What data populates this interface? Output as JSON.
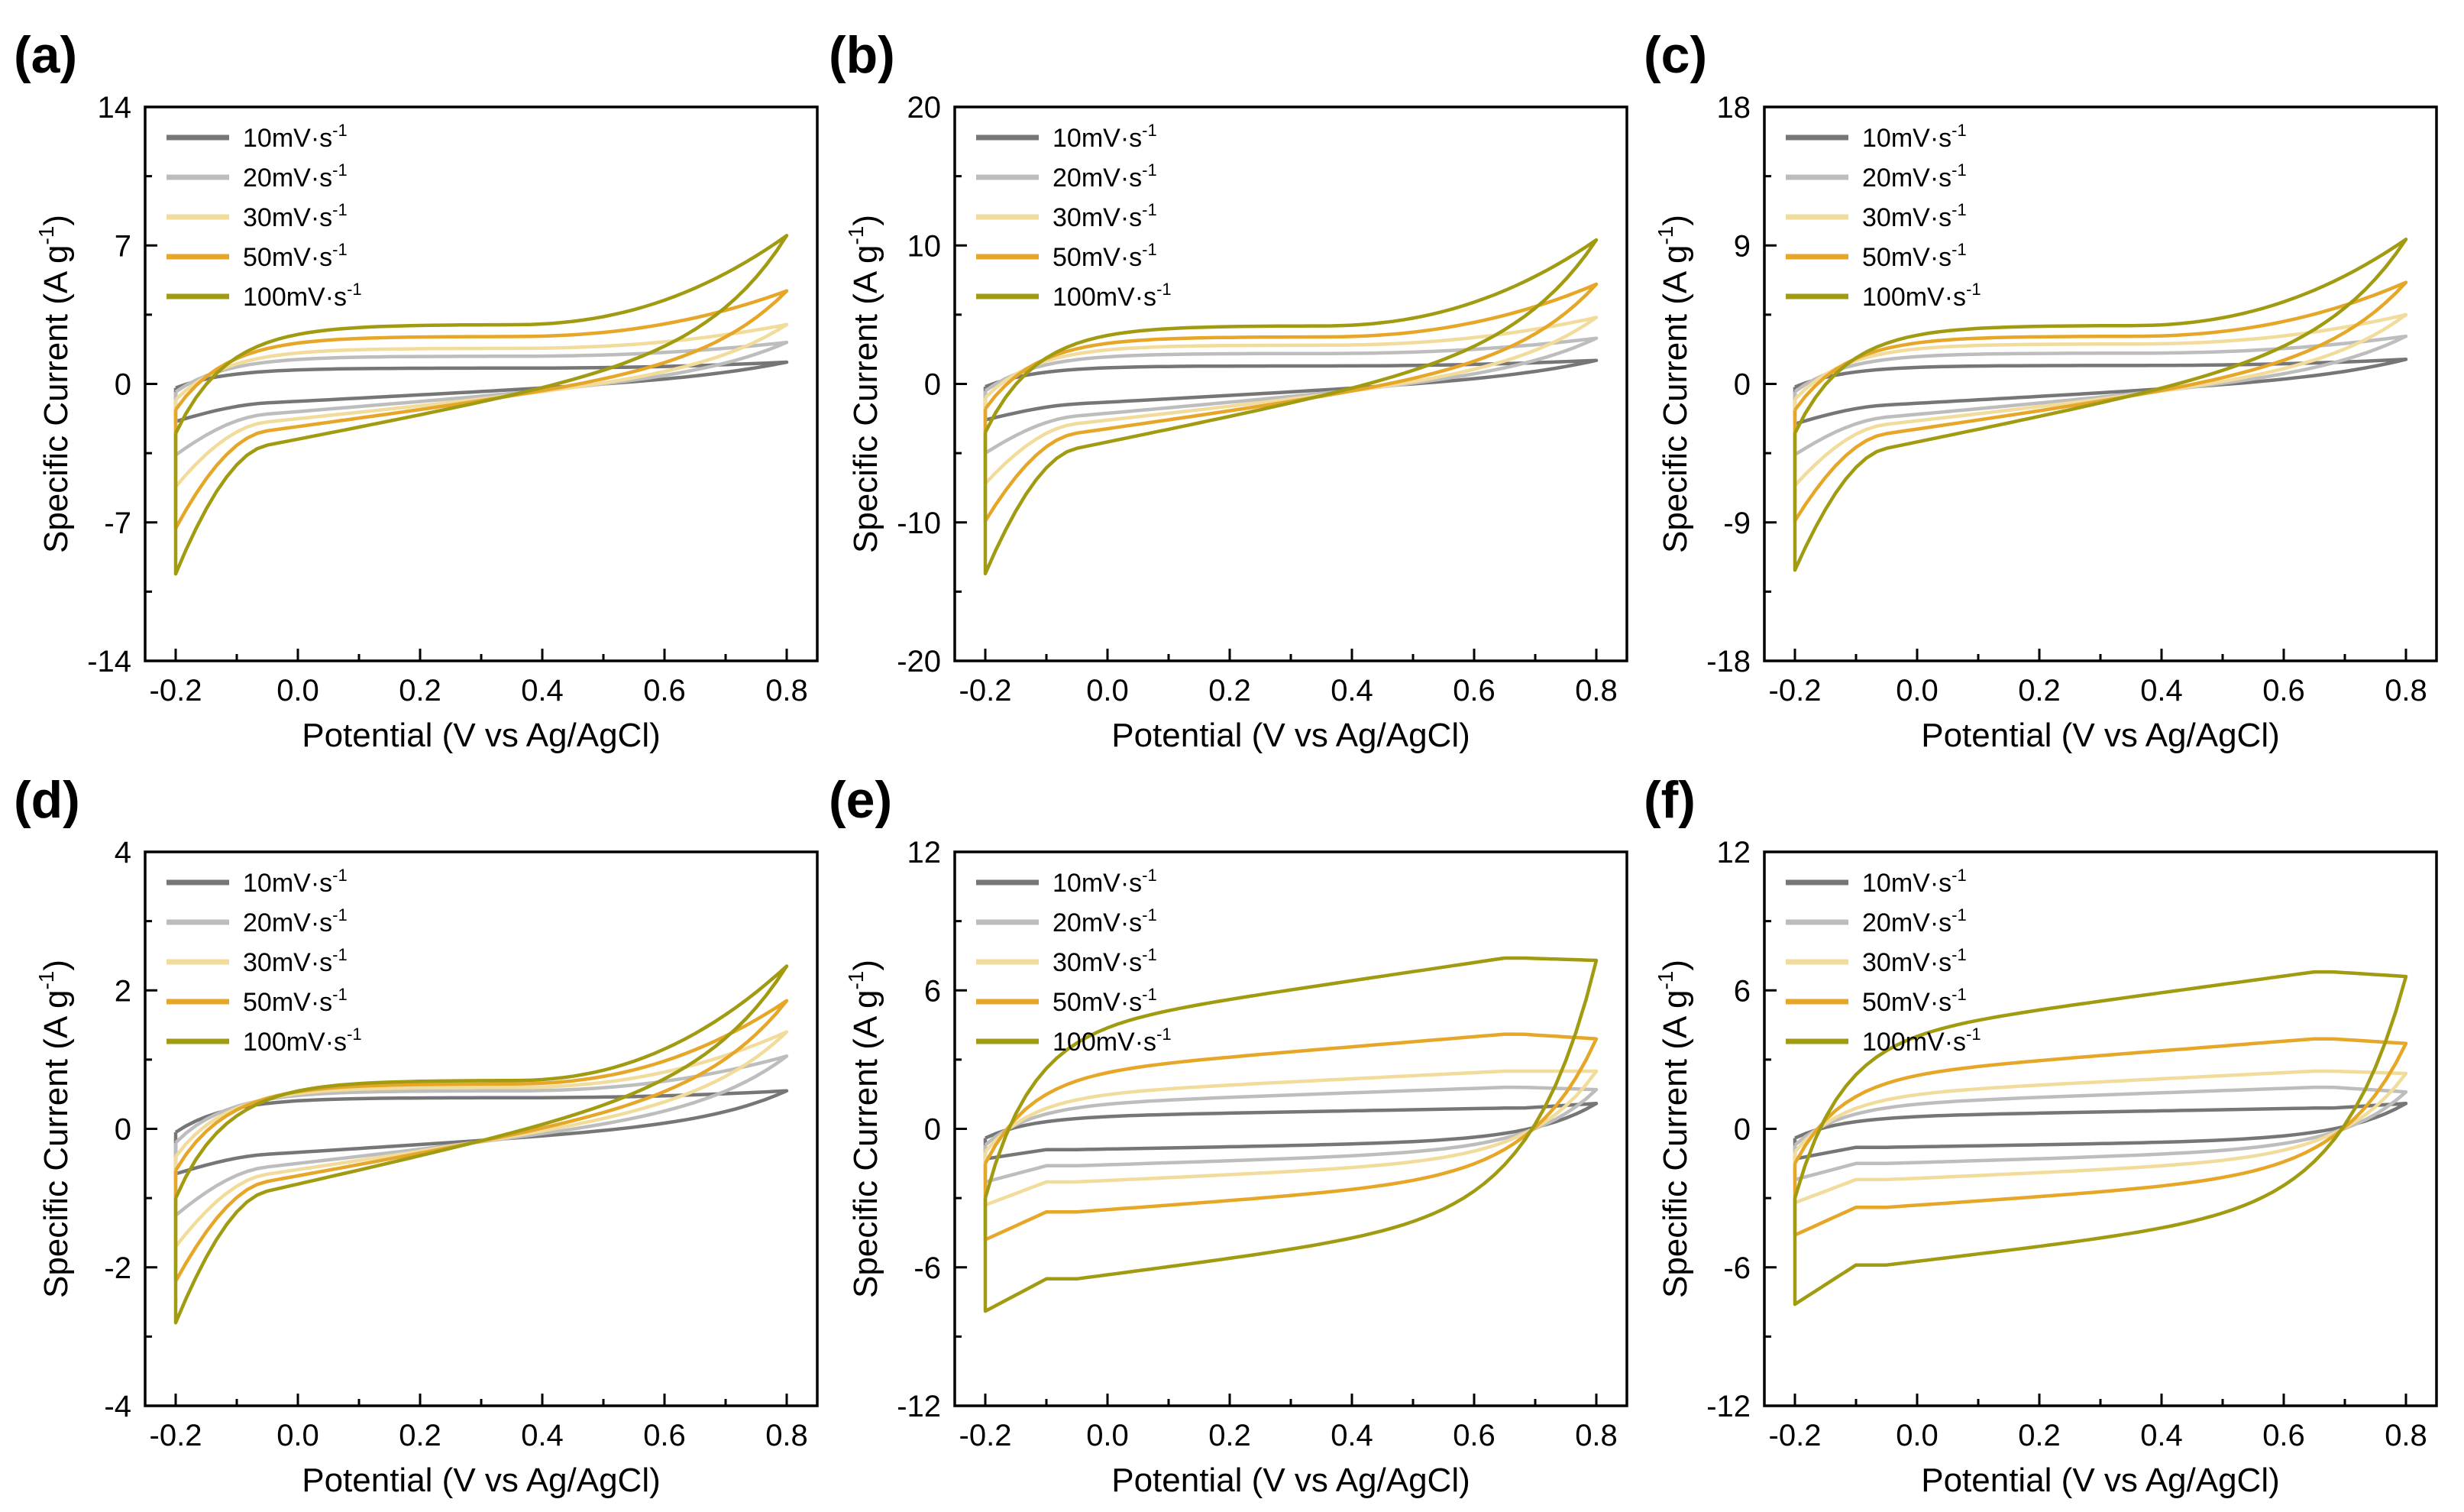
{
  "figure": {
    "x_axis_title": "Potential (V vs Ag/AgCl)",
    "y_axis_title": "Specific Current (A g",
    "y_axis_title_sup": "-1",
    "y_axis_title_end": ")"
  },
  "colors": {
    "10": "#767676",
    "20": "#bdbdbd",
    "30": "#f2dc9b",
    "50": "#e6a627",
    "100": "#a19b12"
  },
  "chart_data": [
    {
      "label": "(a)",
      "type": "line",
      "xlim": [
        -0.25,
        0.85
      ],
      "xticks": [
        "-0.2",
        "0.0",
        "0.2",
        "0.4",
        "0.6",
        "0.8"
      ],
      "ylim": [
        -14,
        14
      ],
      "yticks": [
        "-14",
        "-7",
        "0",
        "7",
        "14"
      ],
      "xlabel": "Potential (V vs Ag/AgCl)",
      "ylabel": "Specific Current (A g-1)",
      "shape": "linear",
      "series": [
        {
          "name": "10mV·s",
          "sup": "-1",
          "color": "#767676",
          "anodic_end": 1.1,
          "cathodic_start": -1.9,
          "upper_mid": 0.8,
          "lower_mid": -1.2,
          "upper_start": -0.2,
          "lower_end": 0.4
        },
        {
          "name": "20mV·s",
          "sup": "-1",
          "color": "#bdbdbd",
          "anodic_end": 2.1,
          "cathodic_start": -3.6,
          "upper_mid": 1.4,
          "lower_mid": -1.9,
          "upper_start": -0.4,
          "lower_end": 0.6
        },
        {
          "name": "30mV·s",
          "sup": "-1",
          "color": "#f2dc9b",
          "anodic_end": 3.0,
          "cathodic_start": -5.2,
          "upper_mid": 1.8,
          "lower_mid": -2.4,
          "upper_start": -0.8,
          "lower_end": 0.8
        },
        {
          "name": "50mV·s",
          "sup": "-1",
          "color": "#e6a627",
          "anodic_end": 4.7,
          "cathodic_start": -7.3,
          "upper_mid": 2.4,
          "lower_mid": -3.0,
          "upper_start": -1.3,
          "lower_end": 1.2
        },
        {
          "name": "100mV·s",
          "sup": "-1",
          "color": "#a19b12",
          "anodic_end": 7.5,
          "cathodic_start": -9.6,
          "upper_mid": 3.0,
          "lower_mid": -4.0,
          "upper_start": -2.5,
          "lower_end": 2.0
        }
      ]
    },
    {
      "label": "(b)",
      "type": "line",
      "xlim": [
        -0.25,
        0.85
      ],
      "xticks": [
        "-0.2",
        "0.0",
        "0.2",
        "0.4",
        "0.6",
        "0.8"
      ],
      "ylim": [
        -20,
        20
      ],
      "yticks": [
        "-20",
        "-10",
        "0",
        "10",
        "20"
      ],
      "xlabel": "Potential (V vs Ag/AgCl)",
      "ylabel": "Specific Current (A g-1)",
      "shape": "linear",
      "series": [
        {
          "name": "10mV·s",
          "sup": "-1",
          "color": "#767676",
          "anodic_end": 1.7,
          "cathodic_start": -2.6,
          "upper_mid": 1.3,
          "lower_mid": -1.8,
          "upper_start": -0.2,
          "lower_end": 0.6
        },
        {
          "name": "20mV·s",
          "sup": "-1",
          "color": "#bdbdbd",
          "anodic_end": 3.3,
          "cathodic_start": -5.0,
          "upper_mid": 2.2,
          "lower_mid": -2.9,
          "upper_start": -0.5,
          "lower_end": 1.0
        },
        {
          "name": "30mV·s",
          "sup": "-1",
          "color": "#f2dc9b",
          "anodic_end": 4.8,
          "cathodic_start": -7.2,
          "upper_mid": 2.8,
          "lower_mid": -3.6,
          "upper_start": -1.0,
          "lower_end": 1.3
        },
        {
          "name": "50mV·s",
          "sup": "-1",
          "color": "#e6a627",
          "anodic_end": 7.2,
          "cathodic_start": -9.9,
          "upper_mid": 3.4,
          "lower_mid": -4.5,
          "upper_start": -1.8,
          "lower_end": 1.8
        },
        {
          "name": "100mV·s",
          "sup": "-1",
          "color": "#a19b12",
          "anodic_end": 10.4,
          "cathodic_start": -13.7,
          "upper_mid": 4.2,
          "lower_mid": -6.0,
          "upper_start": -3.5,
          "lower_end": 3.0
        }
      ]
    },
    {
      "label": "(c)",
      "type": "line",
      "xlim": [
        -0.25,
        0.85
      ],
      "xticks": [
        "-0.2",
        "0.0",
        "0.2",
        "0.4",
        "0.6",
        "0.8"
      ],
      "ylim": [
        -18,
        18
      ],
      "yticks": [
        "-18",
        "-9",
        "0",
        "9",
        "18"
      ],
      "xlabel": "Potential (V vs Ag/AgCl)",
      "ylabel": "Specific Current (A g-1)",
      "shape": "linear",
      "series": [
        {
          "name": "10mV·s",
          "sup": "-1",
          "color": "#767676",
          "anodic_end": 1.6,
          "cathodic_start": -2.6,
          "upper_mid": 1.2,
          "lower_mid": -1.7,
          "upper_start": -0.2,
          "lower_end": 0.5
        },
        {
          "name": "20mV·s",
          "sup": "-1",
          "color": "#bdbdbd",
          "anodic_end": 3.1,
          "cathodic_start": -4.6,
          "upper_mid": 2.0,
          "lower_mid": -2.7,
          "upper_start": -0.5,
          "lower_end": 0.9
        },
        {
          "name": "30mV·s",
          "sup": "-1",
          "color": "#f2dc9b",
          "anodic_end": 4.5,
          "cathodic_start": -6.6,
          "upper_mid": 2.6,
          "lower_mid": -3.3,
          "upper_start": -1.0,
          "lower_end": 1.2
        },
        {
          "name": "50mV·s",
          "sup": "-1",
          "color": "#e6a627",
          "anodic_end": 6.6,
          "cathodic_start": -8.9,
          "upper_mid": 3.1,
          "lower_mid": -4.1,
          "upper_start": -1.7,
          "lower_end": 1.7
        },
        {
          "name": "100mV·s",
          "sup": "-1",
          "color": "#a19b12",
          "anodic_end": 9.4,
          "cathodic_start": -12.1,
          "upper_mid": 3.8,
          "lower_mid": -5.4,
          "upper_start": -3.2,
          "lower_end": 2.7
        }
      ]
    },
    {
      "label": "(d)",
      "type": "line",
      "xlim": [
        -0.25,
        0.85
      ],
      "xticks": [
        "-0.2",
        "0.0",
        "0.2",
        "0.4",
        "0.6",
        "0.8"
      ],
      "ylim": [
        -4,
        4
      ],
      "yticks": [
        "-4",
        "-2",
        "0",
        "2",
        "4"
      ],
      "xlabel": "Potential (V vs Ag/AgCl)",
      "ylabel": "Specific Current (A g-1)",
      "shape": "linear",
      "series": [
        {
          "name": "10mV·s",
          "sup": "-1",
          "color": "#767676",
          "anodic_end": 0.55,
          "cathodic_start": -0.65,
          "upper_mid": 0.45,
          "lower_mid": -0.45,
          "upper_start": -0.05,
          "lower_end": 0.1
        },
        {
          "name": "20mV·s",
          "sup": "-1",
          "color": "#bdbdbd",
          "anodic_end": 1.05,
          "cathodic_start": -1.25,
          "upper_mid": 0.55,
          "lower_mid": -0.7,
          "upper_start": -0.2,
          "lower_end": 0.3
        },
        {
          "name": "30mV·s",
          "sup": "-1",
          "color": "#f2dc9b",
          "anodic_end": 1.4,
          "cathodic_start": -1.7,
          "upper_mid": 0.6,
          "lower_mid": -0.85,
          "upper_start": -0.4,
          "lower_end": 0.45
        },
        {
          "name": "50mV·s",
          "sup": "-1",
          "color": "#e6a627",
          "anodic_end": 1.85,
          "cathodic_start": -2.2,
          "upper_mid": 0.65,
          "lower_mid": -1.0,
          "upper_start": -0.6,
          "lower_end": 0.6
        },
        {
          "name": "100mV·s",
          "sup": "-1",
          "color": "#a19b12",
          "anodic_end": 2.35,
          "cathodic_start": -2.8,
          "upper_mid": 0.7,
          "lower_mid": -1.2,
          "upper_start": -1.0,
          "lower_end": 0.8
        }
      ]
    },
    {
      "label": "(e)",
      "type": "line",
      "xlim": [
        -0.25,
        0.85
      ],
      "xticks": [
        "-0.2",
        "0.0",
        "0.2",
        "0.4",
        "0.6",
        "0.8"
      ],
      "ylim": [
        -12,
        12
      ],
      "yticks": [
        "-12",
        "-6",
        "0",
        "6",
        "12"
      ],
      "xlabel": "Potential (V vs Ag/AgCl)",
      "ylabel": "Specific Current (A g-1)",
      "shape": "rect",
      "series": [
        {
          "name": "10mV·s",
          "sup": "-1",
          "color": "#767676",
          "anodic_end": 1.1,
          "cathodic_start": -1.3,
          "upper_mid": 0.9,
          "lower_mid": -0.9,
          "upper_start": -0.4,
          "lower_end": 0.4
        },
        {
          "name": "20mV·s",
          "sup": "-1",
          "color": "#bdbdbd",
          "anodic_end": 1.7,
          "cathodic_start": -2.3,
          "upper_mid": 1.8,
          "lower_mid": -1.6,
          "upper_start": -0.7,
          "lower_end": 0.7
        },
        {
          "name": "30mV·s",
          "sup": "-1",
          "color": "#f2dc9b",
          "anodic_end": 2.5,
          "cathodic_start": -3.3,
          "upper_mid": 2.5,
          "lower_mid": -2.3,
          "upper_start": -1.0,
          "lower_end": 1.0
        },
        {
          "name": "50mV·s",
          "sup": "-1",
          "color": "#e6a627",
          "anodic_end": 3.9,
          "cathodic_start": -4.8,
          "upper_mid": 4.1,
          "lower_mid": -3.6,
          "upper_start": -1.5,
          "lower_end": 1.5
        },
        {
          "name": "100mV·s",
          "sup": "-1",
          "color": "#a19b12",
          "anodic_end": 7.3,
          "cathodic_start": -7.9,
          "upper_mid": 7.4,
          "lower_mid": -6.5,
          "upper_start": -3.0,
          "lower_end": 3.0
        }
      ]
    },
    {
      "label": "(f)",
      "type": "line",
      "xlim": [
        -0.25,
        0.85
      ],
      "xticks": [
        "-0.2",
        "0.0",
        "0.2",
        "0.4",
        "0.6",
        "0.8"
      ],
      "ylim": [
        -12,
        12
      ],
      "yticks": [
        "-12",
        "-6",
        "0",
        "6",
        "12"
      ],
      "xlabel": "Potential (V vs Ag/AgCl)",
      "ylabel": "Specific Current (A g-1)",
      "shape": "rect",
      "series": [
        {
          "name": "10mV·s",
          "sup": "-1",
          "color": "#767676",
          "anodic_end": 1.1,
          "cathodic_start": -1.3,
          "upper_mid": 0.9,
          "lower_mid": -0.8,
          "upper_start": -0.4,
          "lower_end": 0.4
        },
        {
          "name": "20mV·s",
          "sup": "-1",
          "color": "#bdbdbd",
          "anodic_end": 1.6,
          "cathodic_start": -2.2,
          "upper_mid": 1.8,
          "lower_mid": -1.5,
          "upper_start": -0.7,
          "lower_end": 0.7
        },
        {
          "name": "30mV·s",
          "sup": "-1",
          "color": "#f2dc9b",
          "anodic_end": 2.4,
          "cathodic_start": -3.2,
          "upper_mid": 2.5,
          "lower_mid": -2.2,
          "upper_start": -1.0,
          "lower_end": 1.0
        },
        {
          "name": "50mV·s",
          "sup": "-1",
          "color": "#e6a627",
          "anodic_end": 3.7,
          "cathodic_start": -4.6,
          "upper_mid": 3.9,
          "lower_mid": -3.4,
          "upper_start": -1.5,
          "lower_end": 1.5
        },
        {
          "name": "100mV·s",
          "sup": "-1",
          "color": "#a19b12",
          "anodic_end": 6.6,
          "cathodic_start": -7.6,
          "upper_mid": 6.8,
          "lower_mid": -5.9,
          "upper_start": -3.0,
          "lower_end": 3.0
        }
      ]
    }
  ]
}
